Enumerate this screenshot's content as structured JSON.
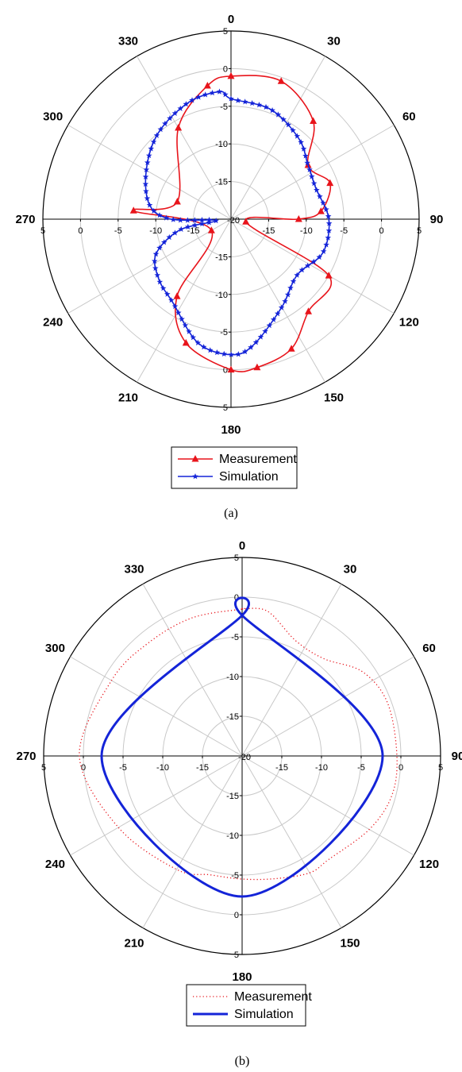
{
  "chart_data": [
    {
      "type": "polar-line",
      "caption": "(a)",
      "angle_labels": [
        "0",
        "30",
        "60",
        "90",
        "120",
        "150",
        "180",
        "210",
        "240",
        "270",
        "300",
        "330"
      ],
      "radial_ticks": [
        "5",
        "0",
        "-5",
        "-10",
        "-15",
        "-20"
      ],
      "rlim": [
        -20,
        5
      ],
      "grid": true,
      "legend_position": "bottom",
      "series": [
        {
          "name": "Measurement",
          "color": "#e8141b",
          "marker": "triangle",
          "line": "solid",
          "points": [
            [
              0,
              -1
            ],
            [
              20,
              -0.5
            ],
            [
              40,
              -3
            ],
            [
              55,
              -7.5
            ],
            [
              70,
              -6
            ],
            [
              85,
              -8
            ],
            [
              90,
              -11
            ],
            [
              100,
              -18
            ],
            [
              120,
              -5
            ],
            [
              140,
              -4
            ],
            [
              155,
              -1
            ],
            [
              170,
              0
            ],
            [
              180,
              0
            ],
            [
              200,
              -2.5
            ],
            [
              215,
              -7.5
            ],
            [
              240,
              -17
            ],
            [
              275,
              -7
            ],
            [
              288,
              -12.5
            ],
            [
              330,
              -6
            ],
            [
              350,
              -2
            ]
          ]
        },
        {
          "name": "Simulation",
          "color": "#1424d8",
          "marker": "star",
          "line": "solid",
          "points": [
            [
              0,
              -4
            ],
            [
              20,
              -4.5
            ],
            [
              40,
              -6
            ],
            [
              55,
              -7.5
            ],
            [
              70,
              -8
            ],
            [
              90,
              -7
            ],
            [
              110,
              -7
            ],
            [
              130,
              -8.5
            ],
            [
              150,
              -6.5
            ],
            [
              170,
              -3
            ],
            [
              180,
              -2
            ],
            [
              195,
              -3
            ],
            [
              215,
              -6.5
            ],
            [
              230,
              -7.5
            ],
            [
              245,
              -9
            ],
            [
              258,
              -13
            ],
            [
              265,
              -18
            ],
            [
              270,
              -12
            ],
            [
              280,
              -9
            ],
            [
              300,
              -7
            ],
            [
              320,
              -5
            ],
            [
              340,
              -3.5
            ],
            [
              355,
              -3
            ]
          ]
        }
      ]
    },
    {
      "type": "polar-line",
      "caption": "(b)",
      "angle_labels": [
        "0",
        "30",
        "60",
        "90",
        "120",
        "150",
        "180",
        "210",
        "240",
        "270",
        "300",
        "330"
      ],
      "radial_ticks": [
        "5",
        "0",
        "-5",
        "-10",
        "-15",
        "-20"
      ],
      "rlim": [
        -20,
        5
      ],
      "grid": true,
      "legend_position": "bottom",
      "series": [
        {
          "name": "Measurement",
          "color": "#e8141b",
          "marker": "none",
          "line": "dotted",
          "points": [
            [
              0,
              -1.5
            ],
            [
              10,
              -1.5
            ],
            [
              25,
              -4
            ],
            [
              40,
              -4
            ],
            [
              55,
              -1.5
            ],
            [
              70,
              -0.5
            ],
            [
              90,
              -0.5
            ],
            [
              105,
              -0.5
            ],
            [
              120,
              -1.5
            ],
            [
              140,
              -3
            ],
            [
              150,
              -3
            ],
            [
              165,
              -4
            ],
            [
              180,
              -4.5
            ],
            [
              195,
              -4.5
            ],
            [
              210,
              -3.5
            ],
            [
              240,
              -2
            ],
            [
              270,
              0.5
            ],
            [
              300,
              -1
            ],
            [
              320,
              -1.5
            ],
            [
              340,
              -1.5
            ],
            [
              360,
              -1.5
            ]
          ]
        },
        {
          "name": "Simulation",
          "color": "#1424d8",
          "marker": "none",
          "line": "solid-thick",
          "points": [
            [
              0,
              -2.3
            ],
            [
              90,
              -2.3
            ],
            [
              180,
              -2.3
            ],
            [
              270,
              -2.3
            ],
            [
              360,
              -2.3
            ]
          ]
        }
      ]
    }
  ]
}
